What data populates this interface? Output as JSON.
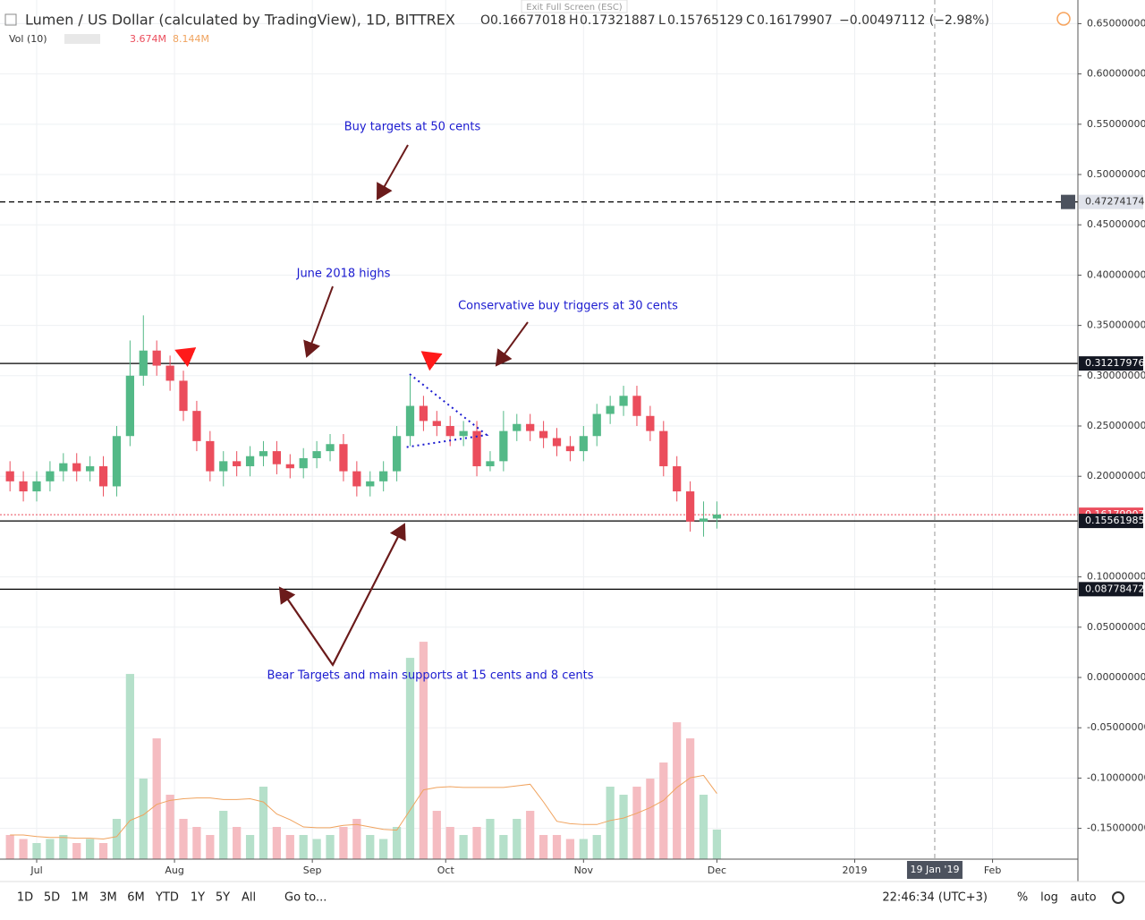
{
  "chart_data": {
    "type": "candlestick",
    "title": "Lumen / US Dollar (calculated by TradingView), 1D, BITTREX",
    "ohlc_header": {
      "o_label": "O",
      "o": "0.16677018",
      "h_label": "H",
      "h": "0.17321887",
      "l_label": "L",
      "l": "0.15765129",
      "c_label": "C",
      "c": "0.16179907",
      "change": "−0.00497112 (−2.98%)"
    },
    "volume_header": {
      "name": "Vol (10)",
      "value": "3.674M",
      "ma": "8.144M"
    },
    "x": [
      -6,
      -3,
      0,
      3,
      6,
      9,
      12,
      15,
      18,
      21,
      24,
      27,
      30,
      33,
      36,
      39,
      42,
      45,
      48,
      51,
      54,
      57,
      60,
      63,
      66,
      69,
      72,
      75,
      78,
      81,
      84,
      87,
      90,
      93,
      96,
      99,
      102,
      105,
      108,
      111,
      114,
      117,
      120,
      123,
      126,
      129,
      132,
      135,
      138,
      141,
      144,
      147,
      150,
      153
    ],
    "open": [
      0.205,
      0.195,
      0.185,
      0.195,
      0.205,
      0.213,
      0.205,
      0.21,
      0.19,
      0.24,
      0.3,
      0.325,
      0.31,
      0.295,
      0.265,
      0.235,
      0.205,
      0.215,
      0.21,
      0.22,
      0.225,
      0.212,
      0.208,
      0.218,
      0.225,
      0.232,
      0.205,
      0.19,
      0.195,
      0.205,
      0.24,
      0.27,
      0.255,
      0.25,
      0.24,
      0.245,
      0.21,
      0.215,
      0.245,
      0.252,
      0.245,
      0.238,
      0.23,
      0.225,
      0.24,
      0.262,
      0.27,
      0.28,
      0.26,
      0.245,
      0.21,
      0.185,
      0.155,
      0.158
    ],
    "high": [
      0.215,
      0.205,
      0.205,
      0.215,
      0.223,
      0.223,
      0.22,
      0.22,
      0.25,
      0.335,
      0.36,
      0.335,
      0.32,
      0.305,
      0.275,
      0.245,
      0.225,
      0.225,
      0.23,
      0.235,
      0.235,
      0.222,
      0.228,
      0.235,
      0.242,
      0.242,
      0.215,
      0.205,
      0.215,
      0.25,
      0.3,
      0.28,
      0.265,
      0.26,
      0.255,
      0.255,
      0.225,
      0.265,
      0.262,
      0.262,
      0.255,
      0.248,
      0.24,
      0.25,
      0.272,
      0.28,
      0.29,
      0.29,
      0.27,
      0.255,
      0.22,
      0.195,
      0.175,
      0.175
    ],
    "low": [
      0.185,
      0.175,
      0.175,
      0.185,
      0.195,
      0.195,
      0.195,
      0.18,
      0.18,
      0.23,
      0.29,
      0.3,
      0.285,
      0.255,
      0.225,
      0.195,
      0.19,
      0.2,
      0.2,
      0.21,
      0.202,
      0.198,
      0.198,
      0.208,
      0.215,
      0.195,
      0.18,
      0.18,
      0.185,
      0.195,
      0.23,
      0.245,
      0.24,
      0.23,
      0.23,
      0.2,
      0.205,
      0.205,
      0.235,
      0.235,
      0.228,
      0.22,
      0.215,
      0.215,
      0.23,
      0.252,
      0.26,
      0.25,
      0.235,
      0.2,
      0.175,
      0.145,
      0.14,
      0.148
    ],
    "close": [
      0.195,
      0.185,
      0.195,
      0.205,
      0.213,
      0.205,
      0.21,
      0.19,
      0.24,
      0.3,
      0.325,
      0.31,
      0.295,
      0.265,
      0.235,
      0.205,
      0.215,
      0.21,
      0.22,
      0.225,
      0.212,
      0.208,
      0.218,
      0.225,
      0.232,
      0.205,
      0.19,
      0.195,
      0.205,
      0.24,
      0.27,
      0.255,
      0.25,
      0.24,
      0.245,
      0.21,
      0.215,
      0.245,
      0.252,
      0.245,
      0.238,
      0.23,
      0.225,
      0.24,
      0.262,
      0.27,
      0.28,
      0.26,
      0.245,
      0.21,
      0.185,
      0.155,
      0.158,
      0.162
    ],
    "up_color": "#53b987",
    "down_color": "#eb4d5c",
    "volume": {
      "values": [
        3,
        2.5,
        2,
        2.5,
        3,
        2,
        2.5,
        2,
        5,
        23,
        10,
        15,
        8,
        5,
        4,
        3,
        6,
        4,
        3,
        9,
        4,
        3,
        3,
        2.5,
        3,
        4,
        5,
        3,
        2.5,
        4,
        25,
        27,
        6,
        4,
        3,
        4,
        5,
        3,
        5,
        6,
        3,
        3,
        2.5,
        2.5,
        3,
        9,
        8,
        9,
        10,
        12,
        17,
        15,
        8,
        3.674
      ],
      "ma": [
        3,
        3,
        2.8,
        2.7,
        2.7,
        2.6,
        2.6,
        2.5,
        2.8,
        4.8,
        5.5,
        6.8,
        7.3,
        7.5,
        7.6,
        7.6,
        7.4,
        7.4,
        7.5,
        7.1,
        5.6,
        4.9,
        4,
        3.9,
        3.9,
        4.2,
        4.3,
        4,
        3.7,
        3.6,
        6.1,
        8.6,
        8.9,
        9,
        8.9,
        8.9,
        8.9,
        8.9,
        9.1,
        9.3,
        7.1,
        4.7,
        4.4,
        4.3,
        4.3,
        4.8,
        5.1,
        5.7,
        6.4,
        7.3,
        8.9,
        10.1,
        10.4,
        8.144
      ],
      "up_color": "#b5e0ca",
      "down_color": "#f5bcc1",
      "ma_color": "#f0a35e",
      "y2lim": [
        0,
        106.7
      ]
    },
    "xlim": [
      -8.25,
      234.2
    ],
    "xticks": [
      {
        "value": 0,
        "label": "Jul"
      },
      {
        "value": 31,
        "label": "Aug"
      },
      {
        "value": 62,
        "label": "Sep"
      },
      {
        "value": 92,
        "label": "Oct"
      },
      {
        "value": 123,
        "label": "Nov"
      },
      {
        "value": 153,
        "label": "Dec"
      },
      {
        "value": 184,
        "label": "2019"
      },
      {
        "value": 215,
        "label": "Feb"
      }
    ],
    "crosshair": {
      "value": 202,
      "label": "19 Jan '19"
    },
    "ylim": [
      -0.1806,
      0.6735
    ],
    "yticks": [
      {
        "value": 0.65,
        "label": "0.65000000"
      },
      {
        "value": 0.6,
        "label": "0.60000000"
      },
      {
        "value": 0.55,
        "label": "0.55000000"
      },
      {
        "value": 0.5,
        "label": "0.50000000"
      },
      {
        "value": 0.45,
        "label": "0.45000000"
      },
      {
        "value": 0.4,
        "label": "0.40000000"
      },
      {
        "value": 0.35,
        "label": "0.35000000"
      },
      {
        "value": 0.3,
        "label": "0.30000000"
      },
      {
        "value": 0.25,
        "label": "0.25000000"
      },
      {
        "value": 0.2,
        "label": "0.20000000"
      },
      {
        "value": 0.1,
        "label": "0.10000000"
      },
      {
        "value": 0.05,
        "label": "0.05000000"
      },
      {
        "value": 0,
        "label": "0.00000000"
      },
      {
        "value": -0.05,
        "label": "-0.05000000"
      },
      {
        "value": -0.1,
        "label": "-0.10000000"
      },
      {
        "value": -0.15,
        "label": "-0.15000000"
      }
    ],
    "grid": true,
    "hlines": [
      {
        "value": 0.47274174,
        "style": "dashed",
        "color": "#000000",
        "label_bg": "#e0e3eb",
        "label_fg": "#333333"
      },
      {
        "value": 0.31217976,
        "style": "solid",
        "color": "#000000",
        "label_bg": "#131722",
        "label_fg": "#ffffff"
      },
      {
        "value": 0.16179907,
        "style": "dotted",
        "color": "#eb4d5c",
        "label_bg": "#eb4d5c",
        "label_fg": "#ffffff"
      },
      {
        "value": 0.15561985,
        "style": "solid",
        "color": "#000000",
        "label_bg": "#131722",
        "label_fg": "#ffffff"
      },
      {
        "value": 0.08778472,
        "style": "solid",
        "color": "#000000",
        "label_bg": "#131722",
        "label_fg": "#ffffff"
      }
    ],
    "annotations": [
      "Buy targets at 50 cents",
      "June 2018 highs",
      "Conservative buy triggers at 30 cents",
      "Bear Targets and main supports at 15 cents and 8 cents"
    ]
  },
  "exit_fullscreen": "Exit Full Screen (ESC)",
  "toolbar": {
    "ranges": [
      "1D",
      "5D",
      "1M",
      "3M",
      "6M",
      "YTD",
      "1Y",
      "5Y",
      "All"
    ],
    "goto": "Go to...",
    "clock": "22:46:34 (UTC+3)",
    "percent": "%",
    "log": "log",
    "auto": "auto"
  }
}
